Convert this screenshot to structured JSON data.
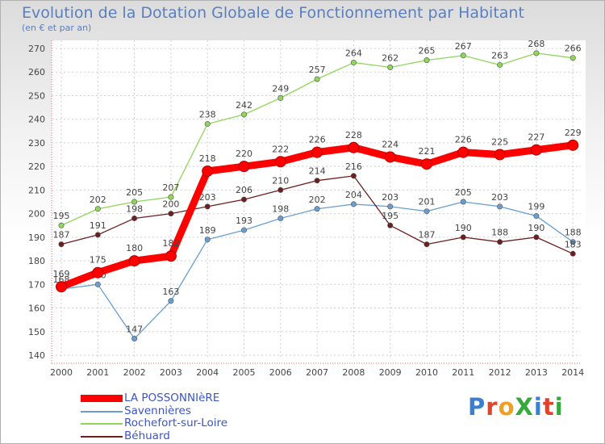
{
  "chart_data": {
    "type": "line",
    "title": "Evolution de la Dotation Globale de Fonctionnement par Habitant",
    "subtitle": "(en € et par an)",
    "categories": [
      "2000",
      "2001",
      "2002",
      "2003",
      "2004",
      "2005",
      "2006",
      "2007",
      "2008",
      "2009",
      "2010",
      "2011",
      "2012",
      "2013",
      "2014"
    ],
    "ylim": [
      140,
      270
    ],
    "yticks": [
      140,
      150,
      160,
      170,
      180,
      190,
      200,
      210,
      220,
      230,
      240,
      250,
      260,
      270
    ],
    "grid": true,
    "series": [
      {
        "name": "LA POSSONNIèRE",
        "color": "#ff0000",
        "values": [
          169,
          175,
          180,
          182,
          218,
          220,
          222,
          226,
          228,
          224,
          221,
          226,
          225,
          227,
          229
        ]
      },
      {
        "name": "Savennières",
        "color": "#6a9ecf",
        "values": [
          168,
          170,
          147,
          163,
          189,
          193,
          198,
          202,
          204,
          203,
          201,
          205,
          203,
          199,
          188
        ]
      },
      {
        "name": "Rochefort-sur-Loire",
        "color": "#8fd65a",
        "values": [
          195,
          202,
          205,
          207,
          238,
          242,
          249,
          257,
          264,
          262,
          265,
          267,
          263,
          268,
          266
        ]
      },
      {
        "name": "Béhuard",
        "color": "#6b1f1f",
        "values": [
          187,
          191,
          198,
          200,
          203,
          206,
          210,
          214,
          216,
          195,
          187,
          190,
          188,
          190,
          183
        ]
      }
    ]
  },
  "logo_text": "ProXiti"
}
